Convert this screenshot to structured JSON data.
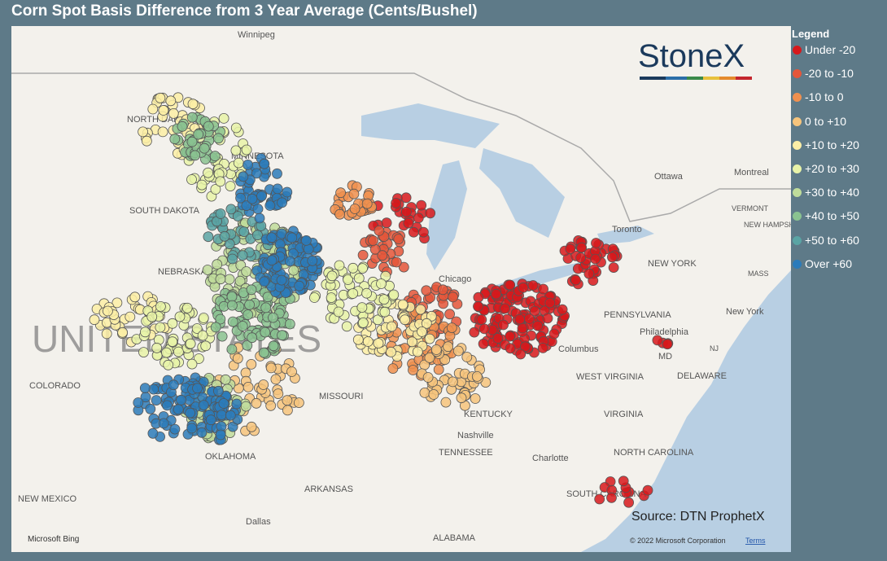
{
  "header": {
    "title": "Corn Spot Basis Difference from 3 Year Average (Cents/Bushel)"
  },
  "legend": {
    "title": "Legend",
    "items": [
      {
        "label": "Under -20",
        "color": "#d7191c"
      },
      {
        "label": "-20 to -10",
        "color": "#e4563a"
      },
      {
        "label": "-10 to 0",
        "color": "#f0904f"
      },
      {
        "label": "0 to +10",
        "color": "#f6c47c"
      },
      {
        "label": "+10 to +20",
        "color": "#fbeea6"
      },
      {
        "label": "+20 to +30",
        "color": "#e8f3a8"
      },
      {
        "label": "+30 to +40",
        "color": "#bfdc9b"
      },
      {
        "label": "+40 to +50",
        "color": "#8ac290"
      },
      {
        "label": "+50 to +60",
        "color": "#5aa4a4"
      },
      {
        "label": "Over +60",
        "color": "#2b7bba"
      }
    ]
  },
  "map": {
    "labels": [
      {
        "text": "Winnipeg"
      },
      {
        "text": "NORTH DAKOTA"
      },
      {
        "text": "MINNESOTA"
      },
      {
        "text": "SOUTH DAKOTA"
      },
      {
        "text": "NEBRASKA"
      },
      {
        "text": "UNITED STATES"
      },
      {
        "text": "COLORADO"
      },
      {
        "text": "MISSOURI"
      },
      {
        "text": "OKLAHOMA"
      },
      {
        "text": "ARKANSAS"
      },
      {
        "text": "NEW MEXICO"
      },
      {
        "text": "Dallas"
      },
      {
        "text": "ALABAMA"
      },
      {
        "text": "TENNESSEE"
      },
      {
        "text": "Nashville"
      },
      {
        "text": "KENTUCKY"
      },
      {
        "text": "Chicago"
      },
      {
        "text": "Columbus"
      },
      {
        "text": "WEST VIRGINIA"
      },
      {
        "text": "VIRGINIA"
      },
      {
        "text": "NORTH CAROLINA"
      },
      {
        "text": "Charlotte"
      },
      {
        "text": "SOUTH CAROLINA"
      },
      {
        "text": "PENNSYLVANIA"
      },
      {
        "text": "Philadelphia"
      },
      {
        "text": "New York"
      },
      {
        "text": "NEW YORK"
      },
      {
        "text": "MD"
      },
      {
        "text": "DELAWARE"
      },
      {
        "text": "NJ"
      },
      {
        "text": "Ottawa"
      },
      {
        "text": "Montreal"
      },
      {
        "text": "Toronto"
      },
      {
        "text": "VERMONT"
      },
      {
        "text": "NEW HAMPSHIRE"
      },
      {
        "text": "MASS"
      }
    ]
  },
  "logo": "StoneX",
  "source": "Source: DTN ProphetX",
  "attribution": {
    "provider": "Microsoft Bing",
    "copyright": "© 2022 Microsoft Corporation",
    "terms": "Terms"
  }
}
